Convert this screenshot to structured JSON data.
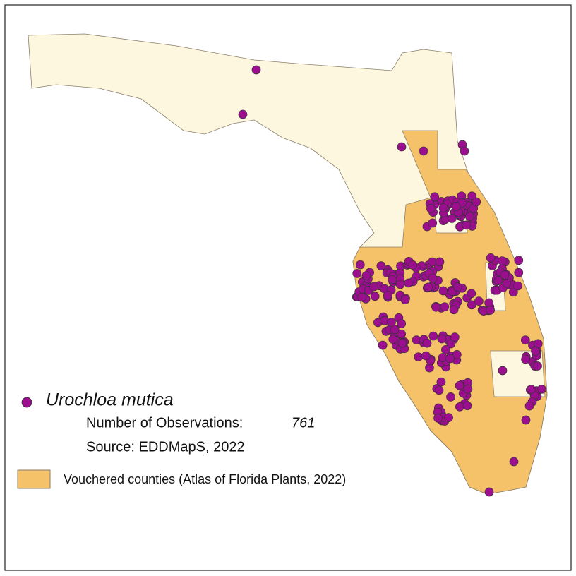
{
  "legend": {
    "species": "Urochloa mutica",
    "observations_label": "Number of Observations:",
    "observations_count": 761,
    "source": "Source: EDDMapS, 2022",
    "vouchered_label": "Vouchered counties (Atlas of Florida Plants, 2022)"
  }
}
